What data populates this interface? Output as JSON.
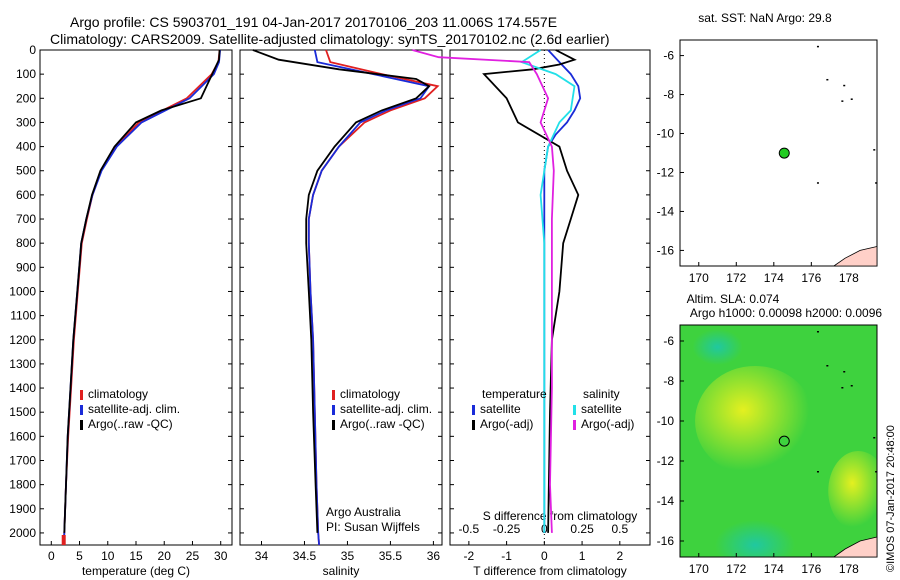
{
  "header": {
    "line1": "Argo profile: CS 5903701_191 04-Jan-2017 20170106_203 11.006S 174.557E",
    "line2": "Climatology: CARS2009. Satellite-adjusted climatology: synTS_20170102.nc (2.6d earlier)"
  },
  "colors": {
    "climatology": "#e02020",
    "satellite": "#1a2bd8",
    "argo": "#000000",
    "sat_salinity": "#22e0e8",
    "argo_salinity": "#e020e0",
    "sst_dot": "#22cc22"
  },
  "chart_data": [
    {
      "type": "line",
      "panel": "temperature",
      "xlabel": "temperature (deg C)",
      "ylabel": "",
      "xlim": [
        -2,
        32
      ],
      "ylim": [
        2050,
        0
      ],
      "xticks": [
        "0",
        "5",
        "10",
        "15",
        "20",
        "25",
        "30"
      ],
      "yticks": [
        "0",
        "100",
        "200",
        "300",
        "400",
        "500",
        "600",
        "700",
        "800",
        "900",
        "1000",
        "1100",
        "1200",
        "1300",
        "1400",
        "1500",
        "1600",
        "1700",
        "1800",
        "1900",
        "2000"
      ],
      "legend": [
        "climatology",
        "satellite-adj. clim.",
        "Argo(..raw -QC)"
      ],
      "series": [
        {
          "name": "climatology",
          "points": [
            [
              29.8,
              0
            ],
            [
              29.6,
              50
            ],
            [
              28.4,
              100
            ],
            [
              24,
              200
            ],
            [
              15.5,
              300
            ],
            [
              11.5,
              400
            ],
            [
              8.8,
              500
            ],
            [
              7.3,
              600
            ],
            [
              6.3,
              700
            ],
            [
              5.4,
              800
            ],
            [
              4.7,
              1000
            ],
            [
              4,
              1200
            ],
            [
              3.5,
              1400
            ],
            [
              3,
              1600
            ],
            [
              2.6,
              1800
            ],
            [
              2.3,
              2000
            ],
            [
              2.2,
              2050
            ]
          ]
        },
        {
          "name": "satellite-adj. clim.",
          "points": [
            [
              29.9,
              0
            ],
            [
              29.7,
              50
            ],
            [
              28.8,
              100
            ],
            [
              24.5,
              200
            ],
            [
              16,
              300
            ],
            [
              11.6,
              400
            ],
            [
              8.9,
              500
            ],
            [
              7.3,
              600
            ],
            [
              6.2,
              700
            ],
            [
              5.3,
              800
            ],
            [
              4.6,
              1000
            ],
            [
              3.9,
              1200
            ],
            [
              3.4,
              1400
            ],
            [
              2.9,
              1600
            ],
            [
              2.6,
              1800
            ],
            [
              2.3,
              2000
            ],
            [
              2.2,
              2050
            ]
          ]
        },
        {
          "name": "Argo(..raw -QC)",
          "points": [
            [
              29.8,
              0
            ],
            [
              29.7,
              40
            ],
            [
              28.5,
              100
            ],
            [
              26.5,
              200
            ],
            [
              19.5,
              250
            ],
            [
              15,
              300
            ],
            [
              11.2,
              400
            ],
            [
              8.7,
              500
            ],
            [
              7.2,
              600
            ],
            [
              6.2,
              700
            ],
            [
              5.3,
              800
            ],
            [
              4.6,
              1000
            ],
            [
              3.9,
              1200
            ],
            [
              3.4,
              1400
            ],
            [
              2.9,
              1600
            ],
            [
              2.6,
              1800
            ],
            [
              2.3,
              2000
            ]
          ]
        }
      ]
    },
    {
      "type": "line",
      "panel": "salinity",
      "xlabel": "salinity",
      "ylabel": "",
      "xlim": [
        33.75,
        36.1
      ],
      "ylim": [
        2050,
        0
      ],
      "xticks": [
        "34",
        "34.5",
        "35",
        "35.5",
        "36"
      ],
      "legend": [
        "climatology",
        "satellite-adj. clim.",
        "Argo(..raw -QC)"
      ],
      "annotations": [
        "Argo Australia",
        "PI: Susan Wijffels"
      ],
      "series": [
        {
          "name": "climatology",
          "points": [
            [
              34.75,
              0
            ],
            [
              34.8,
              50
            ],
            [
              35.4,
              100
            ],
            [
              36.05,
              150
            ],
            [
              35.9,
              200
            ],
            [
              35.5,
              250
            ],
            [
              35.2,
              300
            ],
            [
              34.9,
              400
            ],
            [
              34.7,
              500
            ],
            [
              34.6,
              600
            ],
            [
              34.55,
              700
            ],
            [
              34.55,
              800
            ],
            [
              34.57,
              1000
            ],
            [
              34.6,
              1200
            ],
            [
              34.62,
              1500
            ],
            [
              34.64,
              1800
            ],
            [
              34.66,
              2000
            ],
            [
              34.67,
              2050
            ]
          ]
        },
        {
          "name": "satellite-adj. clim.",
          "points": [
            [
              34.62,
              0
            ],
            [
              34.65,
              50
            ],
            [
              35.3,
              100
            ],
            [
              35.95,
              150
            ],
            [
              35.85,
              200
            ],
            [
              35.45,
              250
            ],
            [
              35.15,
              300
            ],
            [
              34.9,
              400
            ],
            [
              34.7,
              500
            ],
            [
              34.6,
              600
            ],
            [
              34.55,
              700
            ],
            [
              34.55,
              800
            ],
            [
              34.57,
              1000
            ],
            [
              34.6,
              1200
            ],
            [
              34.62,
              1500
            ],
            [
              34.64,
              1800
            ],
            [
              34.66,
              2000
            ],
            [
              34.67,
              2050
            ]
          ]
        },
        {
          "name": "Argo(..raw -QC)",
          "points": [
            [
              33.9,
              0
            ],
            [
              34.2,
              40
            ],
            [
              34.9,
              80
            ],
            [
              35.8,
              120
            ],
            [
              35.95,
              150
            ],
            [
              35.8,
              200
            ],
            [
              35.4,
              250
            ],
            [
              35.1,
              300
            ],
            [
              34.85,
              400
            ],
            [
              34.65,
              500
            ],
            [
              34.55,
              600
            ],
            [
              34.52,
              700
            ],
            [
              34.52,
              800
            ],
            [
              34.55,
              1000
            ],
            [
              34.58,
              1200
            ],
            [
              34.6,
              1500
            ],
            [
              34.63,
              1800
            ],
            [
              34.65,
              2000
            ]
          ]
        }
      ]
    },
    {
      "type": "line",
      "panel": "difference",
      "xlabel": "T difference from climatology",
      "xlabel_top": "S difference from climatology",
      "ylabel": "",
      "xlim": [
        -2.5,
        2.8
      ],
      "ylim": [
        2050,
        0
      ],
      "xticks": [
        "-2",
        "-1",
        "0",
        "1",
        "2"
      ],
      "xticks_top": [
        "-0.5",
        "-0.25",
        "0",
        "0.25",
        "0.5"
      ],
      "legend": [
        "temperature",
        "satellite",
        "Argo(-adj)",
        "salinity",
        "satellite",
        "Argo(-adj)"
      ],
      "series": [
        {
          "name": "satellite",
          "group": "temperature",
          "points": [
            [
              0.1,
              0
            ],
            [
              0.4,
              50
            ],
            [
              0.7,
              100
            ],
            [
              0.9,
              150
            ],
            [
              0.95,
              200
            ],
            [
              0.8,
              250
            ],
            [
              0.6,
              300
            ],
            [
              0.3,
              350
            ],
            [
              0.1,
              400
            ],
            [
              0,
              500
            ],
            [
              0,
              1000
            ],
            [
              0,
              1500
            ],
            [
              0,
              2000
            ]
          ]
        },
        {
          "name": "Argo(-adj)",
          "group": "temperature",
          "points": [
            [
              0.3,
              0
            ],
            [
              0.8,
              40
            ],
            [
              0.4,
              60
            ],
            [
              -0.3,
              80
            ],
            [
              -1.6,
              100
            ],
            [
              -1.0,
              200
            ],
            [
              -0.7,
              300
            ],
            [
              0.4,
              400
            ],
            [
              0.6,
              500
            ],
            [
              0.9,
              600
            ],
            [
              0.7,
              700
            ],
            [
              0.5,
              800
            ],
            [
              0.4,
              1000
            ],
            [
              0.2,
              1200
            ],
            [
              0.15,
              1500
            ],
            [
              0.1,
              2000
            ]
          ]
        },
        {
          "name": "satellite",
          "group": "salinity",
          "points": [
            [
              -0.1,
              0
            ],
            [
              -0.6,
              50
            ],
            [
              0.3,
              100
            ],
            [
              0.8,
              150
            ],
            [
              0.7,
              250
            ],
            [
              0.4,
              300
            ],
            [
              0.1,
              400
            ],
            [
              -0.1,
              600
            ],
            [
              0,
              800
            ],
            [
              0,
              1200
            ],
            [
              0,
              2000
            ]
          ]
        },
        {
          "name": "Argo(-adj)",
          "group": "salinity",
          "points": [
            [
              -3.5,
              0
            ],
            [
              -2.8,
              30
            ],
            [
              -0.4,
              50
            ],
            [
              -0.2,
              100
            ],
            [
              0.1,
              200
            ],
            [
              -0.1,
              300
            ],
            [
              0.2,
              400
            ],
            [
              0.25,
              500
            ],
            [
              0.2,
              700
            ],
            [
              0.2,
              1000
            ],
            [
              0.2,
              1400
            ],
            [
              0.15,
              1800
            ],
            [
              0.2,
              2000
            ]
          ]
        }
      ]
    },
    {
      "type": "scatter",
      "panel": "sst-map",
      "title": "sat. SST: NaN  Argo: 29.8",
      "xlim": [
        169,
        179.5
      ],
      "ylim": [
        -16.8,
        -5.2
      ],
      "xticks": [
        "170",
        "172",
        "174",
        "176",
        "178"
      ],
      "yticks": [
        "-6",
        "-8",
        "-10",
        "-12",
        "-14",
        "-16"
      ],
      "points": [
        [
          174.557,
          -11.006
        ]
      ]
    },
    {
      "type": "heatmap",
      "panel": "sla-map",
      "title_line1": "Altim. SLA: 0.074",
      "title_line2": "Argo h1000: 0.00098  h2000: 0.0096",
      "xlim": [
        169,
        179.5
      ],
      "ylim": [
        -16.8,
        -5.2
      ],
      "xticks": [
        "170",
        "172",
        "174",
        "176",
        "178"
      ],
      "yticks": [
        "-6",
        "-8",
        "-10",
        "-12",
        "-14",
        "-16"
      ],
      "points": [
        [
          174.557,
          -11.006
        ]
      ]
    }
  ],
  "side_note": "©IMOS 07-Jan-2017 20:48:00"
}
